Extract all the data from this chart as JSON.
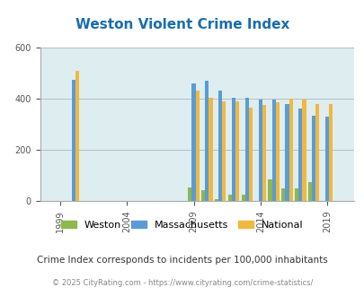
{
  "title": "Weston Violent Crime Index",
  "title_color": "#1a6eab",
  "subtitle": "Crime Index corresponds to incidents per 100,000 inhabitants",
  "footer": "© 2025 CityRating.com - https://www.cityrating.com/crime-statistics/",
  "years": [
    2000,
    2009,
    2010,
    2011,
    2012,
    2013,
    2014,
    2015,
    2016,
    2017,
    2018,
    2019
  ],
  "xtick_labels": [
    "1999",
    "2004",
    "2009",
    "2014",
    "2019"
  ],
  "xtick_positions": [
    1999,
    2004,
    2009,
    2014,
    2019
  ],
  "weston": [
    0,
    55,
    45,
    10,
    25,
    25,
    0,
    85,
    50,
    50,
    75,
    0
  ],
  "massachusetts": [
    475,
    460,
    470,
    430,
    405,
    405,
    395,
    395,
    380,
    360,
    335,
    330
  ],
  "national": [
    510,
    430,
    405,
    390,
    390,
    365,
    375,
    385,
    400,
    395,
    380,
    380
  ],
  "weston_color": "#8cb84c",
  "mass_color": "#5b9bd5",
  "national_color": "#f0b83f",
  "bg_color": "#deedf0",
  "ylim": [
    0,
    600
  ],
  "yticks": [
    0,
    200,
    400,
    600
  ],
  "bar_width": 0.28,
  "figsize": [
    4.06,
    3.3
  ],
  "dpi": 100
}
